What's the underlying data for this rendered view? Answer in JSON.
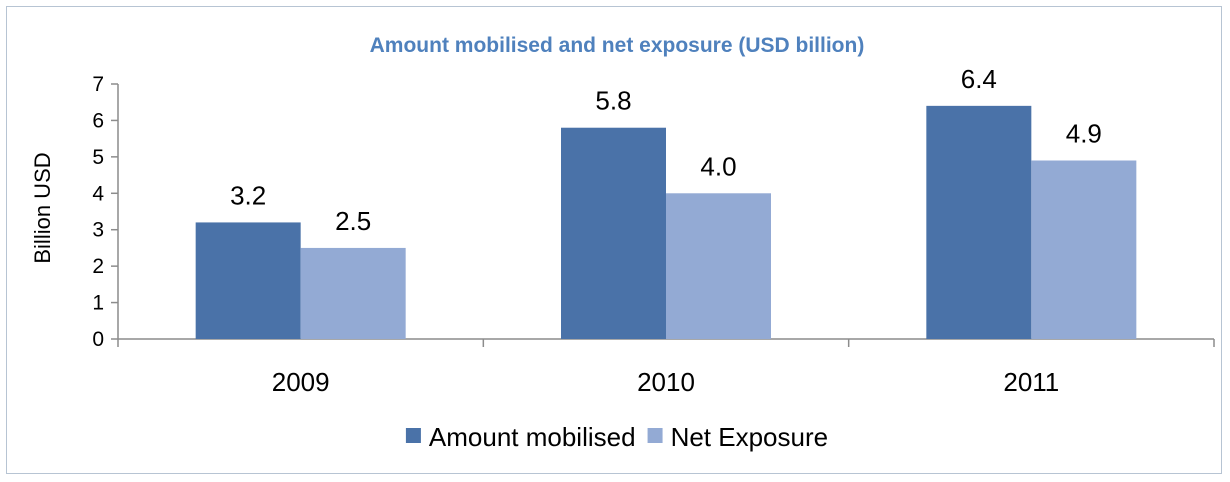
{
  "chart_data": {
    "type": "bar",
    "title": "Amount mobilised  and net exposure  (USD billion)",
    "ylabel": "Billion USD",
    "xlabel": "",
    "categories": [
      "2009",
      "2010",
      "2011"
    ],
    "series": [
      {
        "name": "Amount mobilised",
        "values": [
          3.2,
          5.8,
          6.4
        ],
        "labels": [
          "3.2",
          "5.8",
          "6.4"
        ],
        "color": "#4a72a8"
      },
      {
        "name": "Net Exposure",
        "values": [
          2.5,
          4.0,
          4.9
        ],
        "labels": [
          "2.5",
          "4.0",
          "4.9"
        ],
        "color": "#93aad4"
      }
    ],
    "ylim": [
      0,
      7
    ],
    "yticks": [
      "0",
      "1",
      "2",
      "3",
      "4",
      "5",
      "6",
      "7"
    ],
    "grid": false,
    "legend_position": "bottom"
  }
}
